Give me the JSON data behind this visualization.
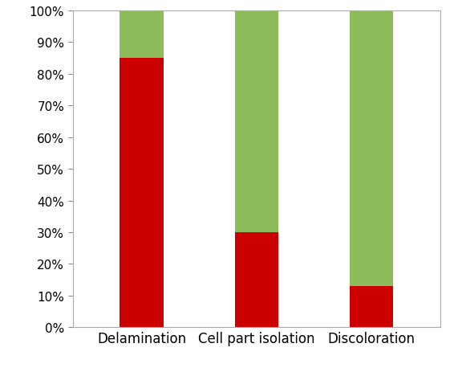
{
  "categories": [
    "Delamination",
    "Cell part isolation",
    "Discoloration"
  ],
  "red_values": [
    85,
    30,
    13
  ],
  "green_values": [
    15,
    70,
    87
  ],
  "red_color": "#cc0000",
  "green_color": "#8fbc5a",
  "ylim": [
    0,
    100
  ],
  "yticks": [
    0,
    10,
    20,
    30,
    40,
    50,
    60,
    70,
    80,
    90,
    100
  ],
  "bar_width": 0.38,
  "background_color": "#ffffff",
  "tick_fontsize": 11,
  "label_fontsize": 12,
  "spine_color": "#aaaaaa",
  "figsize": [
    5.66,
    4.64
  ],
  "dpi": 100
}
